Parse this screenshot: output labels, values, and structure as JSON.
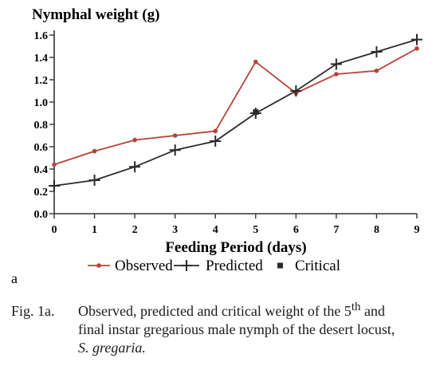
{
  "chart_data": {
    "type": "line",
    "ylabel": "Nymphal weight (g)",
    "xlabel": "Feeding Period (days)",
    "x": [
      0,
      1,
      2,
      3,
      4,
      5,
      6,
      7,
      8,
      9
    ],
    "xlim": [
      0,
      9
    ],
    "ylim": [
      0,
      1.6
    ],
    "x_ticks": [
      "0",
      "1",
      "2",
      "3",
      "4",
      "5",
      "6",
      "7",
      "8",
      "9"
    ],
    "y_ticks": [
      "0.0",
      "0.2",
      "0.4",
      "0.6",
      "0.8",
      "1.0",
      "1.2",
      "1.4",
      "1.6"
    ],
    "series": [
      {
        "name": "Observed",
        "color": "#b5433a",
        "marker": "dot",
        "values": [
          0.44,
          0.56,
          0.66,
          0.7,
          0.74,
          1.36,
          1.08,
          1.25,
          1.28,
          1.48
        ]
      },
      {
        "name": "Predicted",
        "color": "#2a2a2a",
        "marker": "plus",
        "values": [
          0.25,
          0.3,
          0.42,
          0.57,
          0.65,
          0.9,
          1.1,
          1.34,
          1.45,
          1.56
        ]
      },
      {
        "name": "Critical",
        "color": "#2a2a2a",
        "marker": "square",
        "points": [
          {
            "x": 5,
            "y": 0.91
          }
        ]
      }
    ],
    "legend_position": "bottom",
    "grid": false
  },
  "panel_label": "a",
  "caption": {
    "label": "Fig. 1a.",
    "line1": "Observed, predicted and critical weight of the 5",
    "sup": "th",
    "line1_end": " and",
    "line2": "final instar gregarious male nymph of the desert locust,",
    "line3": "S. gregaria."
  }
}
